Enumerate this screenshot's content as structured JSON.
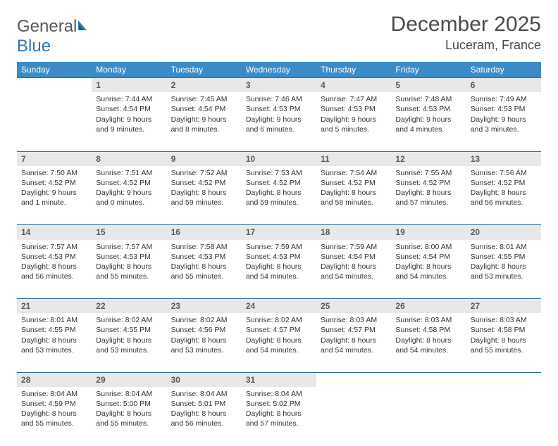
{
  "logo": {
    "part1": "General",
    "part2": "Blue"
  },
  "title": "December 2025",
  "location": "Luceram, France",
  "colors": {
    "header_bg": "#3b8bc9",
    "header_text": "#ffffff",
    "daynum_bg": "#e8e8e8",
    "daynum_text": "#5a5a5a",
    "row_border": "#2e6ba3",
    "body_text": "#333333",
    "logo_gray": "#5a5a5a",
    "logo_blue": "#2e75b6"
  },
  "weekdays": [
    "Sunday",
    "Monday",
    "Tuesday",
    "Wednesday",
    "Thursday",
    "Friday",
    "Saturday"
  ],
  "weeks": [
    [
      null,
      {
        "n": "1",
        "sr": "Sunrise: 7:44 AM",
        "ss": "Sunset: 4:54 PM",
        "dl": "Daylight: 9 hours and 9 minutes."
      },
      {
        "n": "2",
        "sr": "Sunrise: 7:45 AM",
        "ss": "Sunset: 4:54 PM",
        "dl": "Daylight: 9 hours and 8 minutes."
      },
      {
        "n": "3",
        "sr": "Sunrise: 7:46 AM",
        "ss": "Sunset: 4:53 PM",
        "dl": "Daylight: 9 hours and 6 minutes."
      },
      {
        "n": "4",
        "sr": "Sunrise: 7:47 AM",
        "ss": "Sunset: 4:53 PM",
        "dl": "Daylight: 9 hours and 5 minutes."
      },
      {
        "n": "5",
        "sr": "Sunrise: 7:48 AM",
        "ss": "Sunset: 4:53 PM",
        "dl": "Daylight: 9 hours and 4 minutes."
      },
      {
        "n": "6",
        "sr": "Sunrise: 7:49 AM",
        "ss": "Sunset: 4:53 PM",
        "dl": "Daylight: 9 hours and 3 minutes."
      }
    ],
    [
      {
        "n": "7",
        "sr": "Sunrise: 7:50 AM",
        "ss": "Sunset: 4:52 PM",
        "dl": "Daylight: 9 hours and 1 minute."
      },
      {
        "n": "8",
        "sr": "Sunrise: 7:51 AM",
        "ss": "Sunset: 4:52 PM",
        "dl": "Daylight: 9 hours and 0 minutes."
      },
      {
        "n": "9",
        "sr": "Sunrise: 7:52 AM",
        "ss": "Sunset: 4:52 PM",
        "dl": "Daylight: 8 hours and 59 minutes."
      },
      {
        "n": "10",
        "sr": "Sunrise: 7:53 AM",
        "ss": "Sunset: 4:52 PM",
        "dl": "Daylight: 8 hours and 59 minutes."
      },
      {
        "n": "11",
        "sr": "Sunrise: 7:54 AM",
        "ss": "Sunset: 4:52 PM",
        "dl": "Daylight: 8 hours and 58 minutes."
      },
      {
        "n": "12",
        "sr": "Sunrise: 7:55 AM",
        "ss": "Sunset: 4:52 PM",
        "dl": "Daylight: 8 hours and 57 minutes."
      },
      {
        "n": "13",
        "sr": "Sunrise: 7:56 AM",
        "ss": "Sunset: 4:52 PM",
        "dl": "Daylight: 8 hours and 56 minutes."
      }
    ],
    [
      {
        "n": "14",
        "sr": "Sunrise: 7:57 AM",
        "ss": "Sunset: 4:53 PM",
        "dl": "Daylight: 8 hours and 56 minutes."
      },
      {
        "n": "15",
        "sr": "Sunrise: 7:57 AM",
        "ss": "Sunset: 4:53 PM",
        "dl": "Daylight: 8 hours and 55 minutes."
      },
      {
        "n": "16",
        "sr": "Sunrise: 7:58 AM",
        "ss": "Sunset: 4:53 PM",
        "dl": "Daylight: 8 hours and 55 minutes."
      },
      {
        "n": "17",
        "sr": "Sunrise: 7:59 AM",
        "ss": "Sunset: 4:53 PM",
        "dl": "Daylight: 8 hours and 54 minutes."
      },
      {
        "n": "18",
        "sr": "Sunrise: 7:59 AM",
        "ss": "Sunset: 4:54 PM",
        "dl": "Daylight: 8 hours and 54 minutes."
      },
      {
        "n": "19",
        "sr": "Sunrise: 8:00 AM",
        "ss": "Sunset: 4:54 PM",
        "dl": "Daylight: 8 hours and 54 minutes."
      },
      {
        "n": "20",
        "sr": "Sunrise: 8:01 AM",
        "ss": "Sunset: 4:55 PM",
        "dl": "Daylight: 8 hours and 53 minutes."
      }
    ],
    [
      {
        "n": "21",
        "sr": "Sunrise: 8:01 AM",
        "ss": "Sunset: 4:55 PM",
        "dl": "Daylight: 8 hours and 53 minutes."
      },
      {
        "n": "22",
        "sr": "Sunrise: 8:02 AM",
        "ss": "Sunset: 4:55 PM",
        "dl": "Daylight: 8 hours and 53 minutes."
      },
      {
        "n": "23",
        "sr": "Sunrise: 8:02 AM",
        "ss": "Sunset: 4:56 PM",
        "dl": "Daylight: 8 hours and 53 minutes."
      },
      {
        "n": "24",
        "sr": "Sunrise: 8:02 AM",
        "ss": "Sunset: 4:57 PM",
        "dl": "Daylight: 8 hours and 54 minutes."
      },
      {
        "n": "25",
        "sr": "Sunrise: 8:03 AM",
        "ss": "Sunset: 4:57 PM",
        "dl": "Daylight: 8 hours and 54 minutes."
      },
      {
        "n": "26",
        "sr": "Sunrise: 8:03 AM",
        "ss": "Sunset: 4:58 PM",
        "dl": "Daylight: 8 hours and 54 minutes."
      },
      {
        "n": "27",
        "sr": "Sunrise: 8:03 AM",
        "ss": "Sunset: 4:58 PM",
        "dl": "Daylight: 8 hours and 55 minutes."
      }
    ],
    [
      {
        "n": "28",
        "sr": "Sunrise: 8:04 AM",
        "ss": "Sunset: 4:59 PM",
        "dl": "Daylight: 8 hours and 55 minutes."
      },
      {
        "n": "29",
        "sr": "Sunrise: 8:04 AM",
        "ss": "Sunset: 5:00 PM",
        "dl": "Daylight: 8 hours and 55 minutes."
      },
      {
        "n": "30",
        "sr": "Sunrise: 8:04 AM",
        "ss": "Sunset: 5:01 PM",
        "dl": "Daylight: 8 hours and 56 minutes."
      },
      {
        "n": "31",
        "sr": "Sunrise: 8:04 AM",
        "ss": "Sunset: 5:02 PM",
        "dl": "Daylight: 8 hours and 57 minutes."
      },
      null,
      null,
      null
    ]
  ]
}
